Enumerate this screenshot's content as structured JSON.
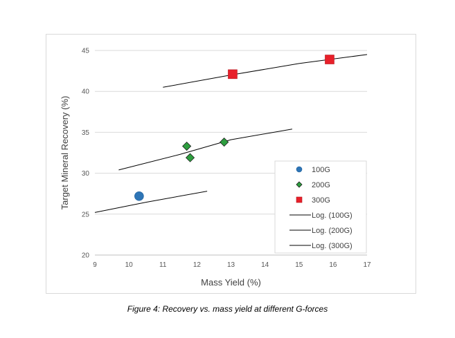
{
  "caption": "Figure 4: Recovery vs. mass yield at different G-forces",
  "chart_data": {
    "type": "scatter",
    "xlabel": "Mass Yield (%)",
    "ylabel": "Target Mineral Recovery (%)",
    "xlim": [
      9,
      17
    ],
    "ylim": [
      20,
      45
    ],
    "x_ticks": [
      "9",
      "10",
      "11",
      "12",
      "13",
      "14",
      "15",
      "16",
      "17"
    ],
    "y_ticks": [
      "20",
      "25",
      "30",
      "35",
      "40",
      "45"
    ],
    "grid": "horizontal",
    "legend_position": "bottom-right",
    "series": [
      {
        "name": "100G",
        "marker": "circle",
        "color": "#2e75b6",
        "points": [
          {
            "x": 10.3,
            "y": 27.2
          }
        ]
      },
      {
        "name": "200G",
        "marker": "diamond",
        "color": "#2e9e3f",
        "points": [
          {
            "x": 11.7,
            "y": 33.3
          },
          {
            "x": 11.8,
            "y": 31.9
          },
          {
            "x": 12.8,
            "y": 33.8
          }
        ]
      },
      {
        "name": "300G",
        "marker": "square",
        "color": "#e8202a",
        "points": [
          {
            "x": 13.05,
            "y": 42.1
          },
          {
            "x": 15.9,
            "y": 43.9
          }
        ]
      }
    ],
    "trendlines": [
      {
        "name": "Log. (100G)",
        "type": "logarithmic",
        "color": "#000000",
        "points": [
          {
            "x": 9.0,
            "y": 25.2
          },
          {
            "x": 10.5,
            "y": 26.45
          },
          {
            "x": 12.3,
            "y": 27.8
          }
        ]
      },
      {
        "name": "Log. (200G)",
        "type": "logarithmic",
        "color": "#000000",
        "points": [
          {
            "x": 9.7,
            "y": 30.4
          },
          {
            "x": 11.5,
            "y": 32.3
          },
          {
            "x": 13.0,
            "y": 34.1
          },
          {
            "x": 14.8,
            "y": 35.4
          }
        ]
      },
      {
        "name": "Log. (300G)",
        "type": "logarithmic",
        "color": "#000000",
        "points": [
          {
            "x": 11.0,
            "y": 40.5
          },
          {
            "x": 13.0,
            "y": 42.0
          },
          {
            "x": 15.0,
            "y": 43.4
          },
          {
            "x": 17.0,
            "y": 44.5
          }
        ]
      }
    ]
  }
}
